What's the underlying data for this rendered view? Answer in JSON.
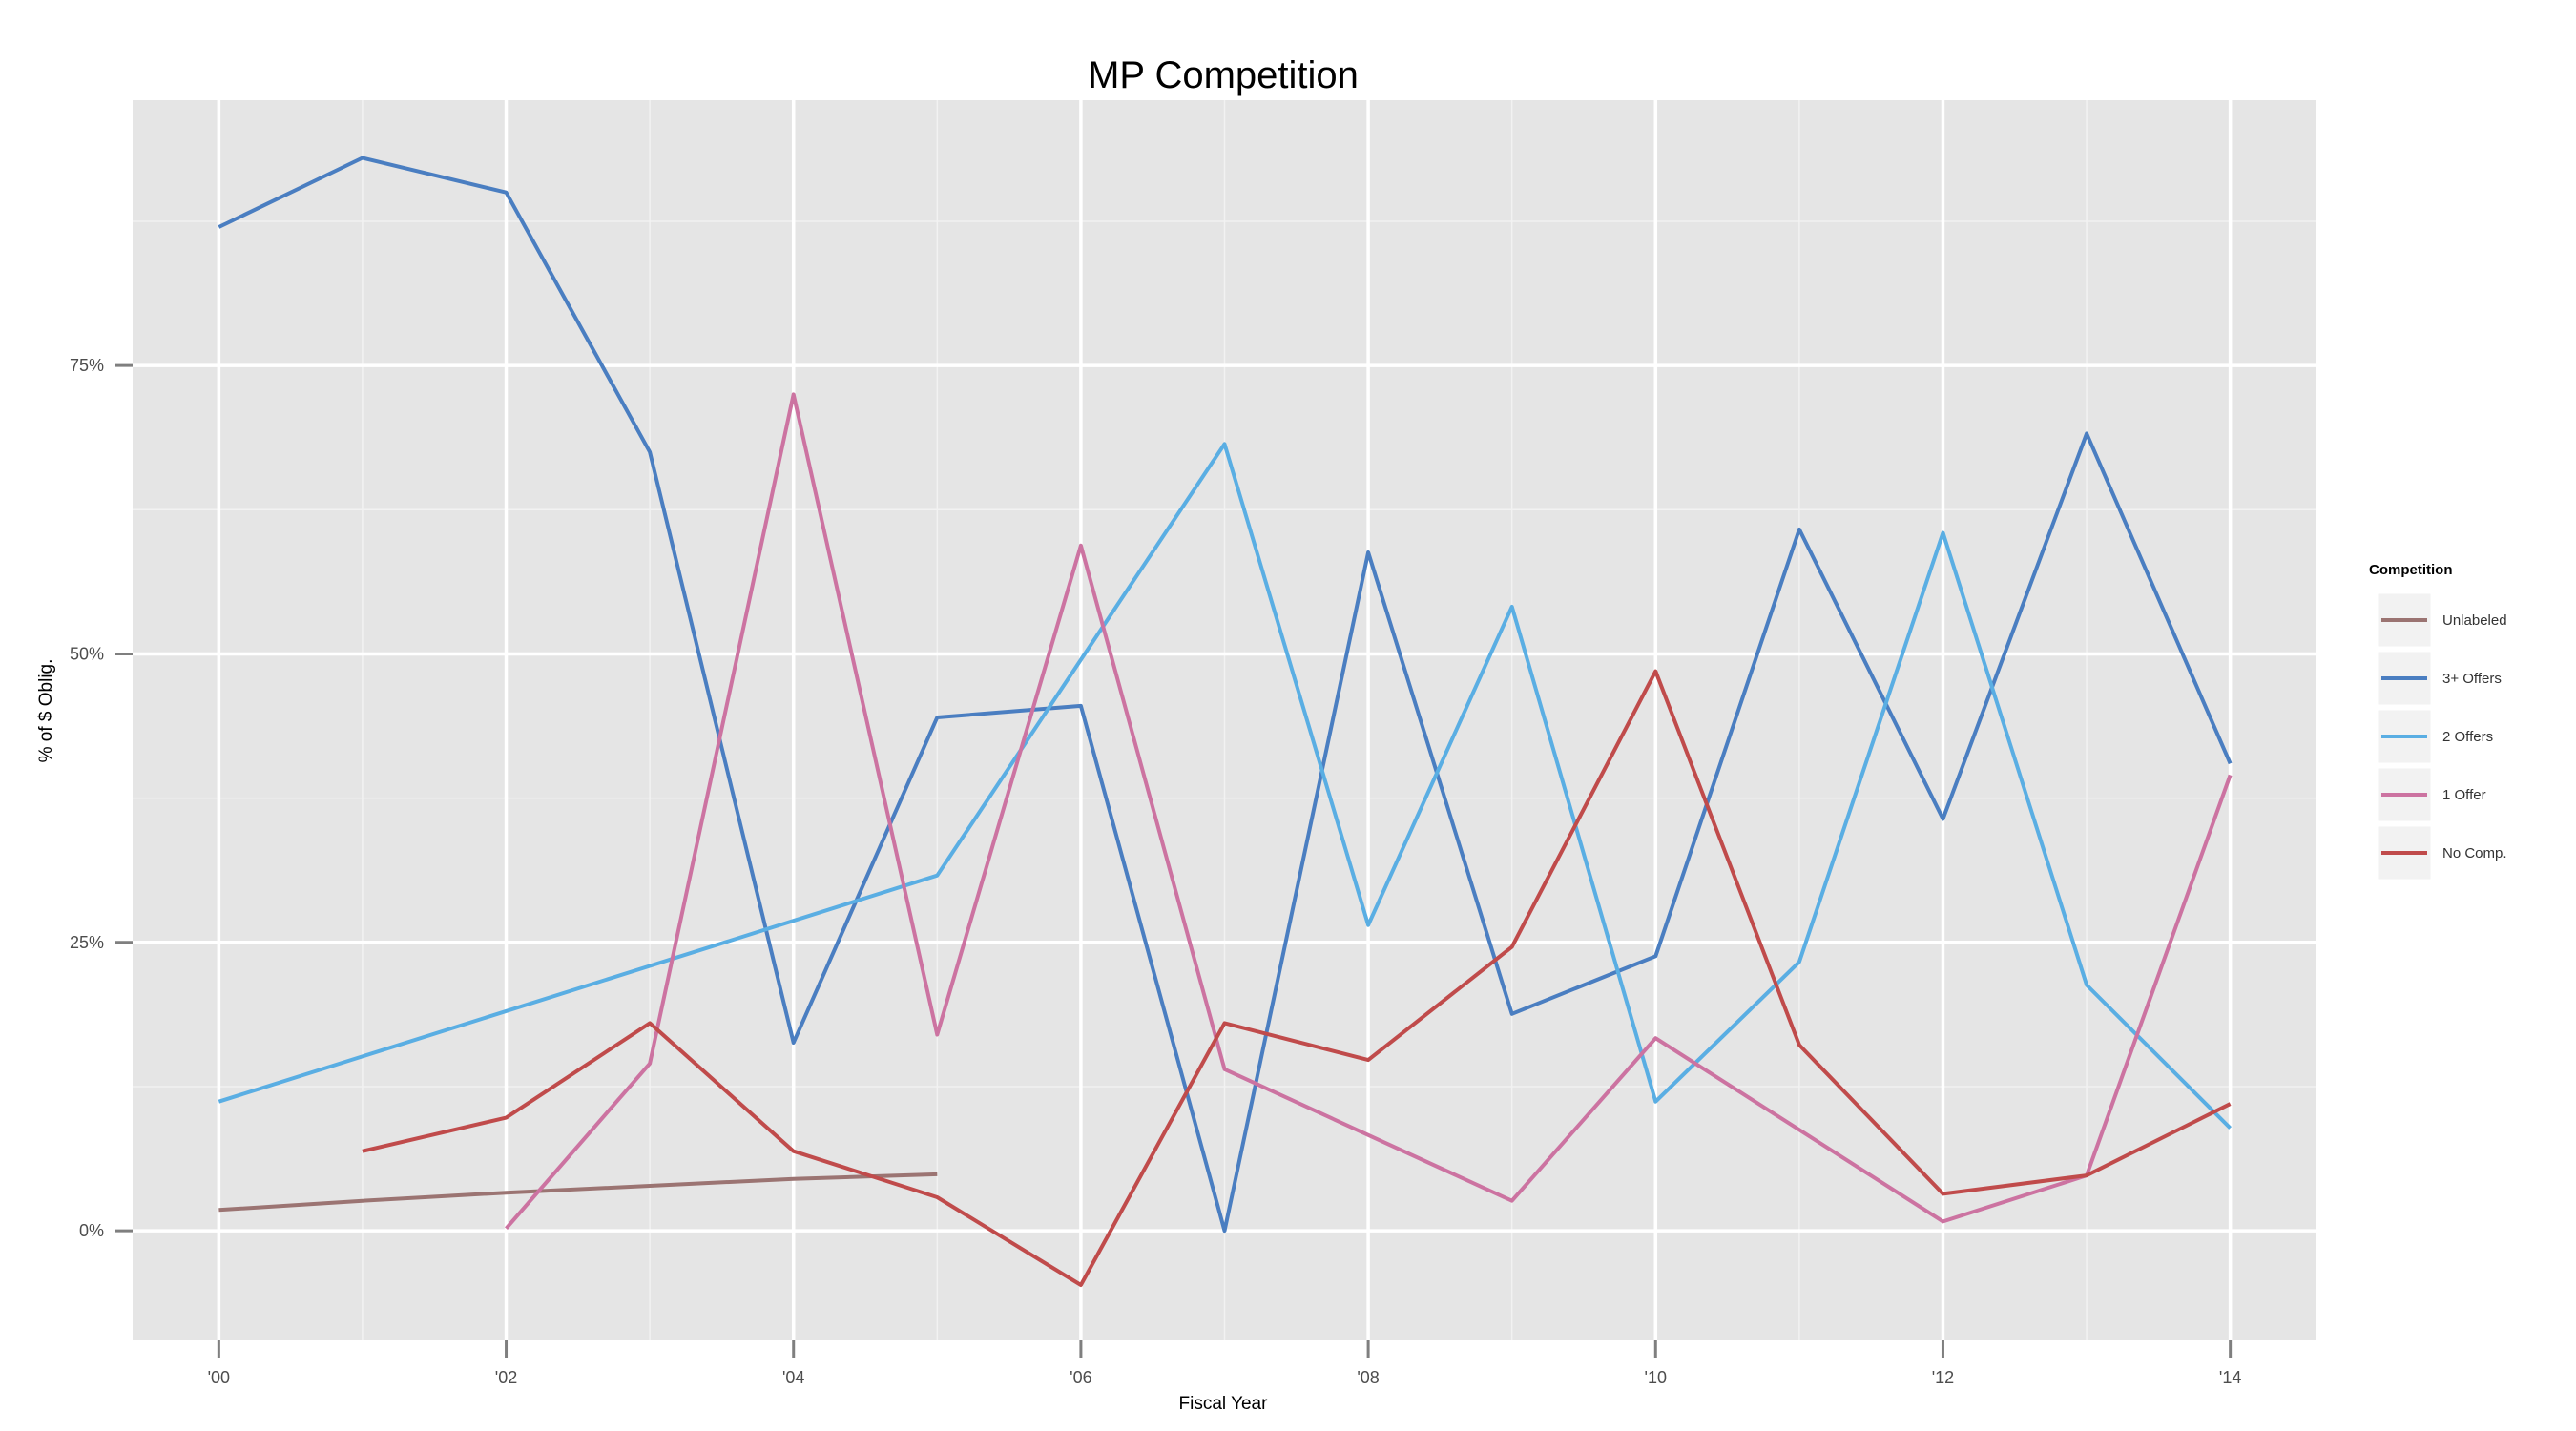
{
  "chart_data": {
    "type": "line",
    "title": "MP Competition",
    "xlabel": "Fiscal Year",
    "ylabel": "% of $ Oblig.",
    "x_ticks": [
      "'00",
      "'02",
      "'04",
      "'06",
      "'08",
      "'10",
      "'12",
      "'14"
    ],
    "x_tick_values": [
      2000,
      2002,
      2004,
      2006,
      2008,
      2010,
      2012,
      2014
    ],
    "y_ticks": [
      "0%",
      "25%",
      "50%",
      "75%"
    ],
    "y_tick_values": [
      0,
      25,
      50,
      75
    ],
    "xlim": [
      1999.4,
      2014.6
    ],
    "ylim": [
      -9.5,
      98
    ],
    "grid": true,
    "legend": {
      "title": "Competition",
      "position": "right"
    },
    "series": [
      {
        "name": "Unlabeled",
        "color": "#9B7472",
        "points": [
          [
            2000,
            1.8
          ],
          [
            2001,
            2.6
          ],
          [
            2002,
            3.3
          ],
          [
            2003,
            3.9
          ],
          [
            2004,
            4.5
          ],
          [
            2005,
            4.9
          ]
        ]
      },
      {
        "name": "3+ Offers",
        "color": "#4A7EC1",
        "points": [
          [
            2000,
            87
          ],
          [
            2001,
            93
          ],
          [
            2002,
            90
          ],
          [
            2003,
            67.5
          ],
          [
            2004,
            16.3
          ],
          [
            2005,
            44.5
          ],
          [
            2006,
            45.5
          ],
          [
            2007,
            0
          ],
          [
            2008,
            58.8
          ],
          [
            2009,
            18.8
          ],
          [
            2010,
            23.8
          ],
          [
            2011,
            60.8
          ],
          [
            2012,
            35.7
          ],
          [
            2013,
            69.1
          ],
          [
            2014,
            40.5
          ]
        ]
      },
      {
        "name": "2 Offers",
        "color": "#5AAEE3",
        "points": [
          [
            2000,
            11.2
          ],
          [
            2005,
            30.8
          ],
          [
            2007,
            68.2
          ],
          [
            2008,
            26.5
          ],
          [
            2009,
            54.1
          ],
          [
            2010,
            11.2
          ],
          [
            2011,
            23.3
          ],
          [
            2012,
            60.5
          ],
          [
            2013,
            21.3
          ],
          [
            2014,
            8.9
          ]
        ]
      },
      {
        "name": "1 Offer",
        "color": "#CC73A1",
        "points": [
          [
            2002,
            0.2
          ],
          [
            2003,
            14.5
          ],
          [
            2004,
            72.5
          ],
          [
            2005,
            17
          ],
          [
            2006,
            59.4
          ],
          [
            2007,
            14
          ],
          [
            2009,
            2.6
          ],
          [
            2010,
            16.7
          ],
          [
            2012,
            0.8
          ],
          [
            2013,
            4.8
          ],
          [
            2014,
            39.5
          ]
        ]
      },
      {
        "name": "No Comp.",
        "color": "#C04B4B",
        "points": [
          [
            2001,
            6.9
          ],
          [
            2002,
            9.8
          ],
          [
            2003,
            18
          ],
          [
            2004,
            6.9
          ],
          [
            2005,
            2.9
          ],
          [
            2006,
            -4.7
          ],
          [
            2007,
            18
          ],
          [
            2008,
            14.8
          ],
          [
            2009,
            24.6
          ],
          [
            2010,
            48.5
          ],
          [
            2011,
            16.1
          ],
          [
            2012,
            3.2
          ],
          [
            2013,
            4.8
          ],
          [
            2014,
            11
          ]
        ]
      }
    ]
  }
}
